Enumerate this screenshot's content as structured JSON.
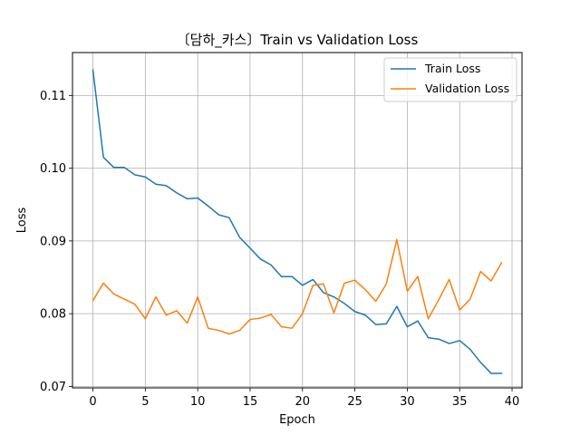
{
  "chart_data": {
    "type": "line",
    "title": "〔담하_카스〕Train vs Validation Loss",
    "xlabel": "Epoch",
    "ylabel": "Loss",
    "xlim": [
      -1.95,
      40.95
    ],
    "ylim": [
      0.0698,
      0.1159
    ],
    "xticks": [
      0,
      5,
      10,
      15,
      20,
      25,
      30,
      35,
      40
    ],
    "yticks": [
      0.07,
      0.08,
      0.09,
      0.1,
      0.11
    ],
    "xtick_labels": [
      "0",
      "5",
      "10",
      "15",
      "20",
      "25",
      "30",
      "35",
      "40"
    ],
    "ytick_labels": [
      "0.07",
      "0.08",
      "0.09",
      "0.10",
      "0.11"
    ],
    "grid": true,
    "legend_position": "upper right",
    "x": [
      0,
      1,
      2,
      3,
      4,
      5,
      6,
      7,
      8,
      9,
      10,
      11,
      12,
      13,
      14,
      15,
      16,
      17,
      18,
      19,
      20,
      21,
      22,
      23,
      24,
      25,
      26,
      27,
      28,
      29,
      30,
      31,
      32,
      33,
      34,
      35,
      36,
      37,
      38,
      39
    ],
    "series": [
      {
        "name": "Train Loss",
        "color": "#1f77b4",
        "values": [
          0.1135,
          0.1015,
          0.1001,
          0.1001,
          0.0991,
          0.0988,
          0.0978,
          0.0976,
          0.0966,
          0.0958,
          0.0959,
          0.0948,
          0.0936,
          0.0932,
          0.0905,
          0.089,
          0.0875,
          0.0867,
          0.0851,
          0.0851,
          0.0839,
          0.0847,
          0.0829,
          0.0823,
          0.0814,
          0.0803,
          0.0798,
          0.0785,
          0.0786,
          0.081,
          0.0782,
          0.079,
          0.0767,
          0.0765,
          0.0759,
          0.0763,
          0.0751,
          0.0733,
          0.0718,
          0.0718
        ]
      },
      {
        "name": "Validation Loss",
        "color": "#ff7f0e",
        "values": [
          0.0818,
          0.0842,
          0.0827,
          0.082,
          0.0813,
          0.0793,
          0.0823,
          0.0798,
          0.0804,
          0.0787,
          0.0823,
          0.078,
          0.0777,
          0.0772,
          0.0777,
          0.0792,
          0.0794,
          0.0799,
          0.0782,
          0.078,
          0.08,
          0.0839,
          0.0841,
          0.0801,
          0.0842,
          0.0846,
          0.0833,
          0.0817,
          0.0841,
          0.0902,
          0.0831,
          0.0851,
          0.0793,
          0.0819,
          0.0847,
          0.0805,
          0.082,
          0.0858,
          0.0845,
          0.087
        ]
      }
    ]
  }
}
